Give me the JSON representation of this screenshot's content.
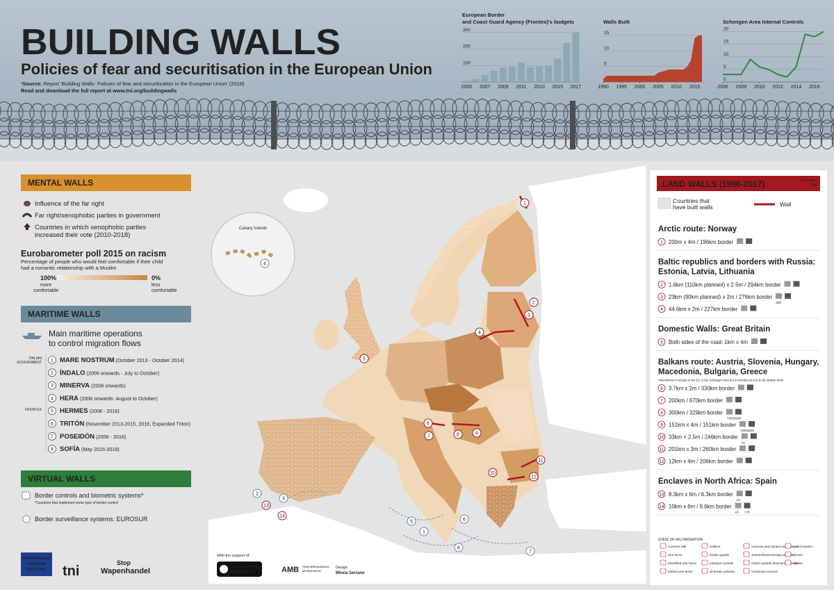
{
  "header": {
    "title": "BUILDING WALLS",
    "subtitle": "Policies of fear and securitisation in the European Union",
    "source_label": "¹Source:",
    "source": "Report 'Building Walls- Policies of fear and securitization in the European Union' (2018)",
    "download": "Read and download the full report at www.tni.org/buildingwalls"
  },
  "chart_data": [
    {
      "type": "bar",
      "title": [
        "European Border",
        "and Coast Guard Agency (Frontex)'s budgets"
      ],
      "categories": [
        "2005",
        null,
        "2007",
        null,
        "2009",
        null,
        "2011",
        null,
        "2013",
        null,
        "2015",
        null,
        "2017"
      ],
      "values": [
        6,
        19,
        42,
        70,
        88,
        93,
        118,
        90,
        94,
        97,
        143,
        238,
        302
      ],
      "color": "#8ea8b6",
      "ylim": [
        0,
        320
      ],
      "yticks": [
        100,
        200,
        300
      ],
      "grid": true
    },
    {
      "type": "area",
      "title": [
        "Walls Built"
      ],
      "x": [
        1990,
        1991,
        1995,
        2000,
        2004,
        2005,
        2008,
        2012,
        2013,
        2014,
        2015,
        2016,
        2017
      ],
      "values": [
        1,
        2,
        2,
        2,
        2,
        3,
        4,
        4,
        5,
        7,
        14,
        15,
        15
      ],
      "color": "#b5432f",
      "xlim": [
        1990,
        2017
      ],
      "ylim": [
        0,
        17
      ],
      "xticks": [
        1990,
        1995,
        2000,
        2005,
        2010,
        2015
      ],
      "yticks": [
        5,
        10,
        15
      ],
      "grid": true
    },
    {
      "type": "line",
      "title": [
        "Schengen Area Internal Controls"
      ],
      "x": [
        2006,
        2007,
        2008,
        2009,
        2010,
        2011,
        2012,
        2013,
        2014,
        2015,
        2016,
        2017
      ],
      "values": [
        3,
        3,
        3,
        9,
        6,
        5,
        3,
        2,
        6,
        19,
        18,
        20
      ],
      "color": "#2e8b3e",
      "xlim": [
        2006,
        2017
      ],
      "ylim": [
        0,
        21
      ],
      "xticks": [
        2006,
        2008,
        2010,
        2012,
        2014,
        2016
      ],
      "yticks": [
        0,
        5,
        10,
        15,
        20
      ],
      "grid": true
    }
  ],
  "mental_walls": {
    "title": "MENTAL WALLS",
    "legend": [
      [
        "Influence of the far right"
      ],
      [
        "Far right/xenophobic parties in government"
      ],
      [
        "Countries in which xenophobic parties",
        "increased their vote (2010-2018)"
      ]
    ],
    "poll_title": "Eurobarometer poll 2015 on racism",
    "poll_description": [
      "Percentage of people who would feel comfortable if their child",
      "had a romantic relationship with a Muslim"
    ],
    "scale_high": "100%",
    "scale_high_note": [
      "more",
      "comfortable"
    ],
    "scale_low": "0%",
    "scale_low_note": [
      "less",
      "comfortable"
    ]
  },
  "maritime_walls": {
    "title": "MARITIME WALLS",
    "subtitle": [
      "Main maritime operations",
      "to control migration flows"
    ],
    "group_italy": [
      "ITALIAN",
      "GOVERNMENT"
    ],
    "group_frontex": "FRONTEX",
    "operations": [
      {
        "num": 1,
        "name": "MARE NOSTRUM",
        "period": "(October 2013 - October 2014)"
      },
      {
        "num": 2,
        "name": "ÍNDALO",
        "period": "(2006 onwards - July to October)"
      },
      {
        "num": 3,
        "name": "MINERVA",
        "period": "(2006 onwards)"
      },
      {
        "num": 4,
        "name": "HERA",
        "period": "(2006 onwards- August to October)"
      },
      {
        "num": 5,
        "name": "HERMES",
        "period": "(2008 - 2016)"
      },
      {
        "num": 6,
        "name": "TRITÓN",
        "period": "(November 2013-2015, 2016, Expanded Triton)"
      },
      {
        "num": 7,
        "name": "POSEIDÓN",
        "period": "(2006 - 2016)"
      },
      {
        "num": 8,
        "name": "SOFÍA",
        "period": "(May 2015-2018)"
      }
    ]
  },
  "virtual_walls": {
    "title": "VIRTUAL WALLS",
    "biometric": "Border controls and biometric systems*",
    "biometric_note": "*Countries that implement some type of border control",
    "eurosur": "Border surveillance systems: EUROSUR"
  },
  "land_walls": {
    "title": "LAND WALLS (1990-2017)",
    "estimated_note": [
      "*Estimated",
      "data"
    ],
    "legend_countries": [
      "Countries that",
      "have built walls"
    ],
    "legend_wall": "Wall",
    "sections": [
      {
        "title": [
          "Arctic route: Norway"
        ],
        "items": [
          {
            "num": 1,
            "text": "200m x 4m / 196km border"
          }
        ]
      },
      {
        "title": [
          "Baltic republics and borders with Russia:",
          "Estonia, Latvia, Lithuania"
        ],
        "items": [
          {
            "num": 2,
            "text": "1.6km (110km planned) x 2.5m / 294km border"
          },
          {
            "num": 3,
            "text": "23km (90km planned) x 2m / 276km border",
            "badges": [
              "200"
            ]
          },
          {
            "num": 4,
            "text": "44.6km x 2m / 227km border"
          }
        ]
      },
      {
        "title": [
          "Domestic Walls: Great Britain"
        ],
        "items": [
          {
            "num": 5,
            "text": "Both sides of the road: 1km x 4m"
          }
        ]
      },
      {
        "title": [
          "Balkans route: Austria, Slovenia, Hungary,",
          "Macedonia, Bulgaria, Greece"
        ],
        "note": "*Macedonia is not part of the EU or the Schengen area but is included as it is on the Balkan route",
        "items": [
          {
            "num": 6,
            "text": "3.7km x 2m / 330km border"
          },
          {
            "num": 7,
            "text": "200km / 670km border"
          },
          {
            "num": 8,
            "text": "300km / 329km border",
            "badges": [
              "+3000",
              "100"
            ]
          },
          {
            "num": 9,
            "text": "151km x 4m / 151km border",
            "badges": [
              "+3000",
              "100"
            ]
          },
          {
            "num": 10,
            "text": "33km + 2.5m / 246km border",
            "badges": [
              "x2"
            ]
          },
          {
            "num": 11,
            "text": "201km x 3m / 260km border"
          },
          {
            "num": 12,
            "text": "12km x 4m / 206km border"
          }
        ]
      },
      {
        "title": [
          "Enclaves in North Africa: Spain"
        ],
        "items": [
          {
            "num": 13,
            "text": "8.3km x 6m / 6.3km border",
            "badges": [
              "x2"
            ]
          },
          {
            "num": 14,
            "text": "10km x 6m / 9.6km border",
            "badges": [
              "x3",
              "+70"
            ]
          }
        ]
      }
    ],
    "militarisation_title": "STATE OF MILITARISATION",
    "militarisation": [
      [
        "concrete wall",
        "wire fence",
        "electrified wire fence",
        "barbed wire fence"
      ],
      [
        "soldiers",
        "border guards",
        "passport controls",
        "all-terrain vehicles"
      ],
      [
        "cameras and camera surveillance",
        "sensors/heat-sensing cameras",
        "carbon dioxide detectors for trucks",
        "movement sensors"
      ],
      [
        "control towers",
        "drones",
        "alarms"
      ]
    ]
  },
  "map": {
    "inset_label": "Canary Islands"
  },
  "footer": {
    "support": "With the support of:",
    "barcelona": [
      "Ajuntament de",
      "Barcelona"
    ],
    "amb": "AMB",
    "amb_full": [
      "Àrea Metropolitana",
      "de Barcelona"
    ],
    "design_label": "Design",
    "designer": "Mireia Serrano",
    "delas": [
      "CENTRE DELÀS",
      "D'ESTUDIS",
      "PER LA PAU"
    ],
    "tni": "tni",
    "stop": [
      "Stop",
      "Wapenhandel"
    ]
  }
}
